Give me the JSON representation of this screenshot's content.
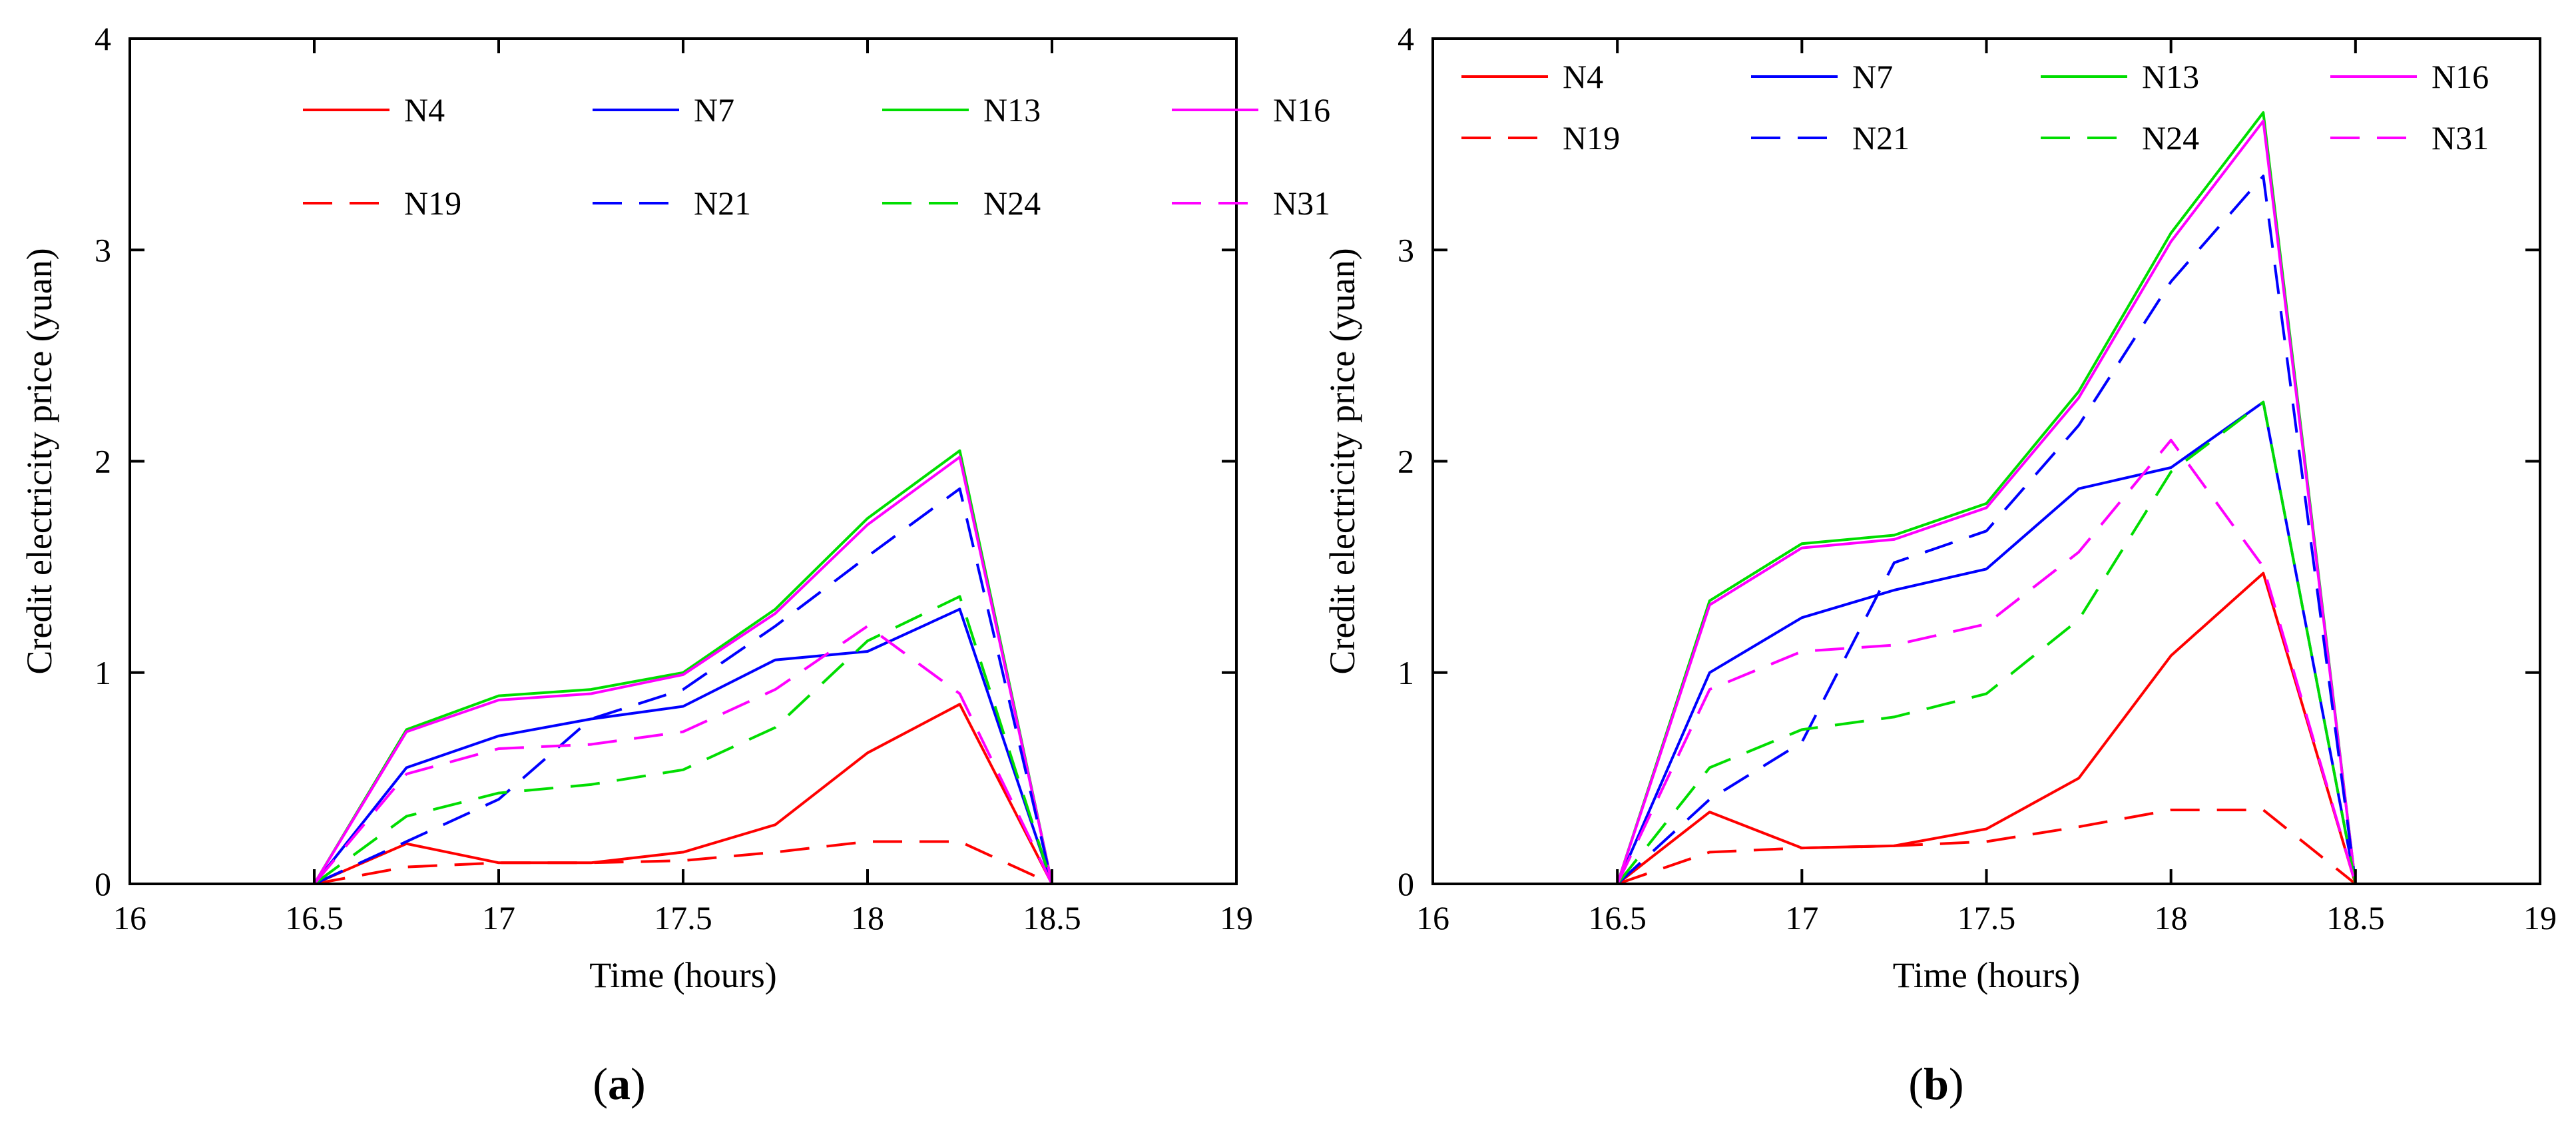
{
  "chart_data": [
    {
      "type": "line",
      "panel_label": "a",
      "title": "",
      "xlabel": "Time (hours)",
      "ylabel": "Credit electricity price (yuan)",
      "xlim": [
        16,
        19
      ],
      "ylim": [
        0,
        4
      ],
      "xticks": [
        16,
        16.5,
        17,
        17.5,
        18,
        18.5,
        19
      ],
      "xtick_labels": [
        "16",
        "16.5",
        "17",
        "17.5",
        "18",
        "18.5",
        "19"
      ],
      "yticks": [
        0,
        1,
        2,
        3,
        4
      ],
      "ytick_labels": [
        "0",
        "1",
        "2",
        "3",
        "4"
      ],
      "grid": false,
      "legend_position": "top-center",
      "x": [
        16,
        16.25,
        16.5,
        16.75,
        17,
        17.25,
        17.5,
        17.75,
        18,
        18.25,
        18.5,
        18.75,
        19
      ],
      "series": [
        {
          "name": "N4",
          "color": "#ff0000",
          "dash": "solid",
          "values": [
            0,
            0,
            0,
            0.19,
            0.1,
            0.1,
            0.15,
            0.28,
            0.62,
            0.85,
            0,
            0,
            0
          ]
        },
        {
          "name": "N7",
          "color": "#0000ff",
          "dash": "solid",
          "values": [
            0,
            0,
            0,
            0.55,
            0.7,
            0.78,
            0.84,
            1.06,
            1.1,
            1.3,
            0,
            0,
            0
          ]
        },
        {
          "name": "N13",
          "color": "#00dd00",
          "dash": "solid",
          "values": [
            0,
            0,
            0,
            0.73,
            0.89,
            0.92,
            1.0,
            1.3,
            1.73,
            2.05,
            0,
            0,
            0
          ]
        },
        {
          "name": "N16",
          "color": "#ff00ff",
          "dash": "solid",
          "values": [
            0,
            0,
            0,
            0.72,
            0.87,
            0.9,
            0.99,
            1.28,
            1.7,
            2.02,
            0,
            0,
            0
          ]
        },
        {
          "name": "N19",
          "color": "#ff0000",
          "dash": "dashed",
          "values": [
            0,
            0,
            0,
            0.08,
            0.1,
            0.1,
            0.11,
            0.15,
            0.2,
            0.2,
            0,
            0,
            0
          ]
        },
        {
          "name": "N21",
          "color": "#0000ff",
          "dash": "dashed",
          "values": [
            0,
            0,
            0,
            0.2,
            0.4,
            0.78,
            0.92,
            1.22,
            1.55,
            1.87,
            0,
            0,
            0
          ]
        },
        {
          "name": "N24",
          "color": "#00dd00",
          "dash": "dashed",
          "values": [
            0,
            0,
            0,
            0.32,
            0.43,
            0.47,
            0.54,
            0.74,
            1.15,
            1.36,
            0,
            0,
            0
          ]
        },
        {
          "name": "N31",
          "color": "#ff00ff",
          "dash": "dashed",
          "values": [
            0,
            0,
            0,
            0.52,
            0.64,
            0.66,
            0.72,
            0.92,
            1.22,
            0.9,
            0,
            0,
            0
          ]
        }
      ]
    },
    {
      "type": "line",
      "panel_label": "b",
      "title": "",
      "xlabel": "Time (hours)",
      "ylabel": "Credit electricity price (yuan)",
      "xlim": [
        16,
        19
      ],
      "ylim": [
        0,
        4
      ],
      "xticks": [
        16,
        16.5,
        17,
        17.5,
        18,
        18.5,
        19
      ],
      "xtick_labels": [
        "16",
        "16.5",
        "17",
        "17.5",
        "18",
        "18.5",
        "19"
      ],
      "yticks": [
        0,
        1,
        2,
        3,
        4
      ],
      "ytick_labels": [
        "0",
        "1",
        "2",
        "3",
        "4"
      ],
      "grid": false,
      "legend_position": "top-left",
      "x": [
        16,
        16.25,
        16.5,
        16.75,
        17,
        17.25,
        17.5,
        17.75,
        18,
        18.25,
        18.5,
        18.75,
        19
      ],
      "series": [
        {
          "name": "N4",
          "color": "#ff0000",
          "dash": "solid",
          "values": [
            0,
            0,
            0,
            0.34,
            0.17,
            0.18,
            0.26,
            0.5,
            1.08,
            1.47,
            0,
            0,
            0
          ]
        },
        {
          "name": "N7",
          "color": "#0000ff",
          "dash": "solid",
          "values": [
            0,
            0,
            0,
            1.0,
            1.26,
            1.39,
            1.49,
            1.87,
            1.97,
            2.28,
            0,
            0,
            0
          ]
        },
        {
          "name": "N13",
          "color": "#00dd00",
          "dash": "solid",
          "values": [
            0,
            0,
            0,
            1.34,
            1.61,
            1.65,
            1.8,
            2.33,
            3.08,
            3.65,
            0,
            0,
            0
          ]
        },
        {
          "name": "N16",
          "color": "#ff00ff",
          "dash": "solid",
          "values": [
            0,
            0,
            0,
            1.32,
            1.59,
            1.63,
            1.78,
            2.3,
            3.04,
            3.61,
            0,
            0,
            0
          ]
        },
        {
          "name": "N19",
          "color": "#ff0000",
          "dash": "dashed",
          "values": [
            0,
            0,
            0,
            0.15,
            0.17,
            0.18,
            0.2,
            0.27,
            0.35,
            0.35,
            0,
            0,
            0
          ]
        },
        {
          "name": "N21",
          "color": "#0000ff",
          "dash": "dashed",
          "values": [
            0,
            0,
            0,
            0.4,
            0.67,
            1.52,
            1.67,
            2.17,
            2.85,
            3.35,
            0,
            0,
            0
          ]
        },
        {
          "name": "N24",
          "color": "#00dd00",
          "dash": "dashed",
          "values": [
            0,
            0,
            0,
            0.55,
            0.73,
            0.79,
            0.9,
            1.25,
            1.95,
            2.28,
            0,
            0,
            0
          ]
        },
        {
          "name": "N31",
          "color": "#ff00ff",
          "dash": "dashed",
          "values": [
            0,
            0,
            0,
            0.92,
            1.1,
            1.13,
            1.23,
            1.57,
            2.1,
            1.5,
            0,
            0,
            0
          ]
        }
      ]
    }
  ]
}
